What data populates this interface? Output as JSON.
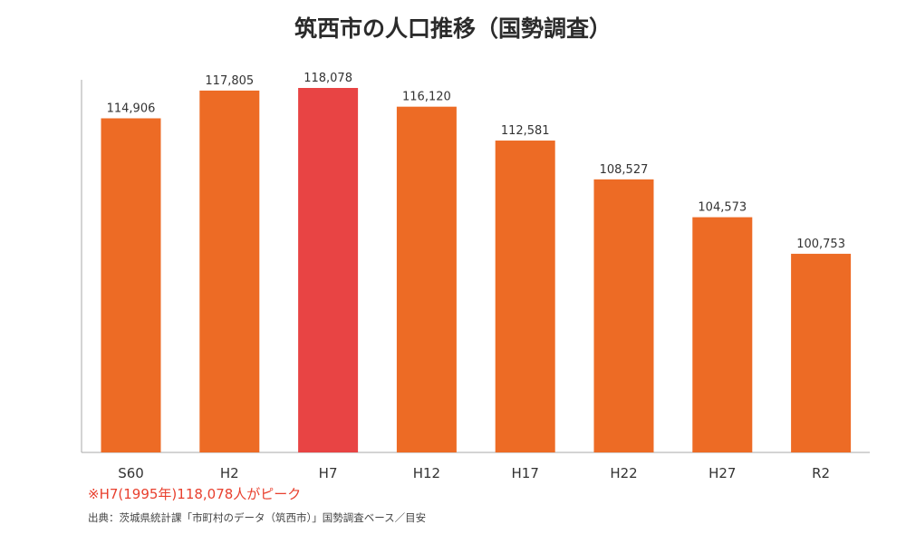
{
  "chart_data": {
    "type": "bar",
    "title": "筑西市の人口推移（国勢調査）",
    "categories": [
      "S60",
      "H2",
      "H7",
      "H12",
      "H17",
      "H22",
      "H27",
      "R2"
    ],
    "values": [
      114906,
      117805,
      118078,
      116120,
      112581,
      108527,
      104573,
      100753
    ],
    "value_labels": [
      "114,906",
      "117,805",
      "118,078",
      "116,120",
      "112,581",
      "108,527",
      "104,573",
      "100,753"
    ],
    "highlight_category": "H7",
    "colors": {
      "bar": "#ED6B25",
      "highlight": "#E84444",
      "axis": "#aaaaaa",
      "text": "#333333"
    },
    "grid": false,
    "legend": "none"
  },
  "note": "※H7(1995年)118,078人がピーク",
  "source": "出典：茨城県統計課「市町村のデータ（筑西市）」国勢調査ベース／目安"
}
